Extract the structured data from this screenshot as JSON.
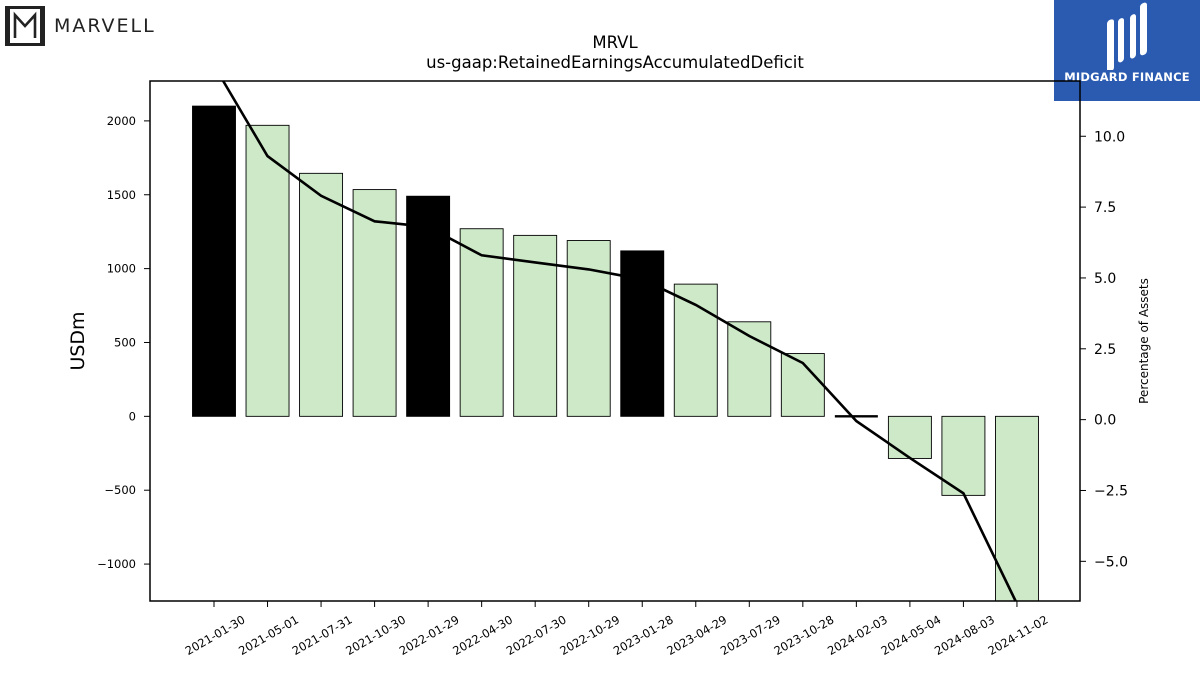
{
  "branding": {
    "company_logo_text": "MARVELL",
    "publisher_logo_text": "MIDGARD FINANCE",
    "publisher_color": "#2a5bb0"
  },
  "chart_data": {
    "type": "bar",
    "title": "MRVL",
    "subtitle": "us-gaap:RetainedEarningsAccumulatedDeficit",
    "ylabel": "USDm",
    "y2label": "Percentage of Assets",
    "categories": [
      "2021-01-30",
      "2021-05-01",
      "2021-07-31",
      "2021-10-30",
      "2022-01-29",
      "2022-04-30",
      "2022-07-30",
      "2022-10-29",
      "2023-01-28",
      "2023-04-29",
      "2023-07-29",
      "2023-10-28",
      "2024-02-03",
      "2024-05-04",
      "2024-08-03",
      "2024-11-02"
    ],
    "series": [
      {
        "kind": "bar",
        "values": [
          2100,
          1970,
          1645,
          1535,
          1490,
          1270,
          1225,
          1190,
          1120,
          895,
          640,
          425,
          0,
          -285,
          -535,
          -1250
        ],
        "fill_colors": [
          "#000000",
          "#cde9c8",
          "#cde9c8",
          "#cde9c8",
          "#000000",
          "#cde9c8",
          "#cde9c8",
          "#cde9c8",
          "#000000",
          "#cde9c8",
          "#cde9c8",
          "#cde9c8",
          "#cde9c8",
          "#cde9c8",
          "#cde9c8",
          "#cde9c8"
        ]
      },
      {
        "kind": "line",
        "axis": "right",
        "values": [
          12.5,
          9.3,
          7.9,
          7.0,
          6.8,
          5.8,
          5.55,
          5.3,
          4.95,
          4.05,
          2.95,
          2.0,
          -0.05,
          -1.35,
          -2.6,
          -6.5
        ],
        "color": "#000000"
      }
    ],
    "ylim": [
      -1250,
      2270
    ],
    "y_ticks": [
      -1000,
      -500,
      0,
      500,
      1000,
      1500,
      2000
    ],
    "y2lim": [
      -6.4,
      11.95
    ],
    "y2_ticks": [
      -5.0,
      -2.5,
      0.0,
      2.5,
      5.0,
      7.5,
      10.0
    ],
    "grid": false,
    "legend": "none"
  }
}
